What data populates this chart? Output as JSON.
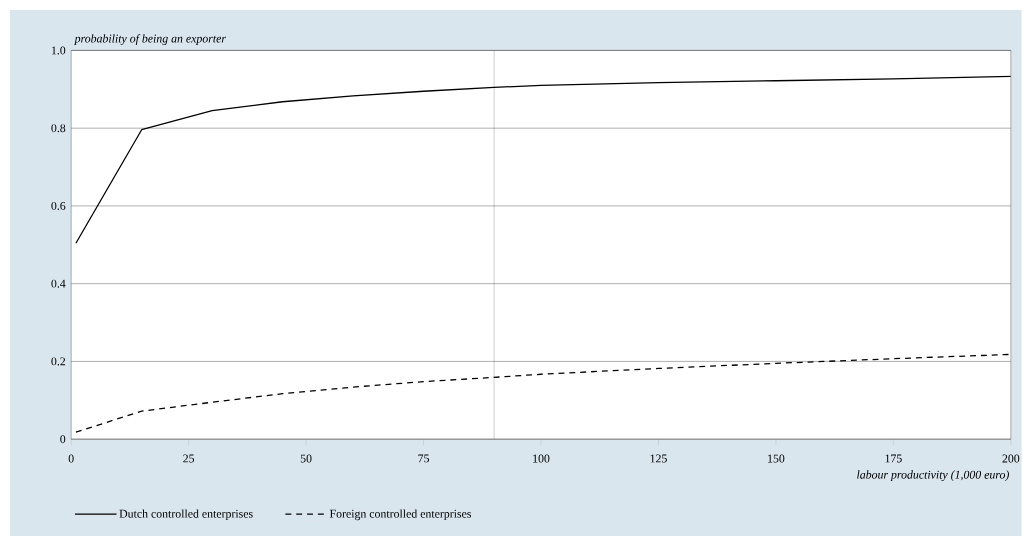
{
  "chart_data": {
    "type": "line",
    "ylabel": "probability of being an exporter",
    "xlabel": "labour productivity (1,000 euro)",
    "x": [
      1,
      15,
      30,
      45,
      60,
      75,
      90,
      100,
      125,
      150,
      175,
      200
    ],
    "series": [
      {
        "name": "Dutch controlled enterprises",
        "color": "#000000",
        "line_style": "solid",
        "values": [
          0.504,
          0.796,
          0.845,
          0.868,
          0.883,
          0.895,
          0.905,
          0.91,
          0.917,
          0.922,
          0.927,
          0.933
        ]
      },
      {
        "name": "Foreign controlled enterprises",
        "color": "#000000",
        "line_style": "dashed",
        "values": [
          0.018,
          0.072,
          0.095,
          0.117,
          0.134,
          0.148,
          0.159,
          0.167,
          0.182,
          0.195,
          0.207,
          0.218
        ]
      }
    ],
    "xlim": [
      0,
      200
    ],
    "ylim": [
      0,
      1.0
    ],
    "xticks": [
      0,
      25,
      50,
      75,
      100,
      125,
      150,
      175,
      200
    ],
    "yticks": [
      0,
      {
        "value": 0.2,
        "label": "0.2"
      },
      {
        "value": 0.4,
        "label": "0.4"
      },
      {
        "value": 0.6,
        "label": "0.6"
      },
      {
        "value": 0.8,
        "label": "0.8"
      },
      {
        "value": 1.0,
        "label": "1.0"
      }
    ],
    "ref_lines": [
      {
        "axis": "x",
        "value": 90,
        "color": "#000000"
      }
    ],
    "grid": "y",
    "legend": "bottom",
    "marker": "none"
  }
}
